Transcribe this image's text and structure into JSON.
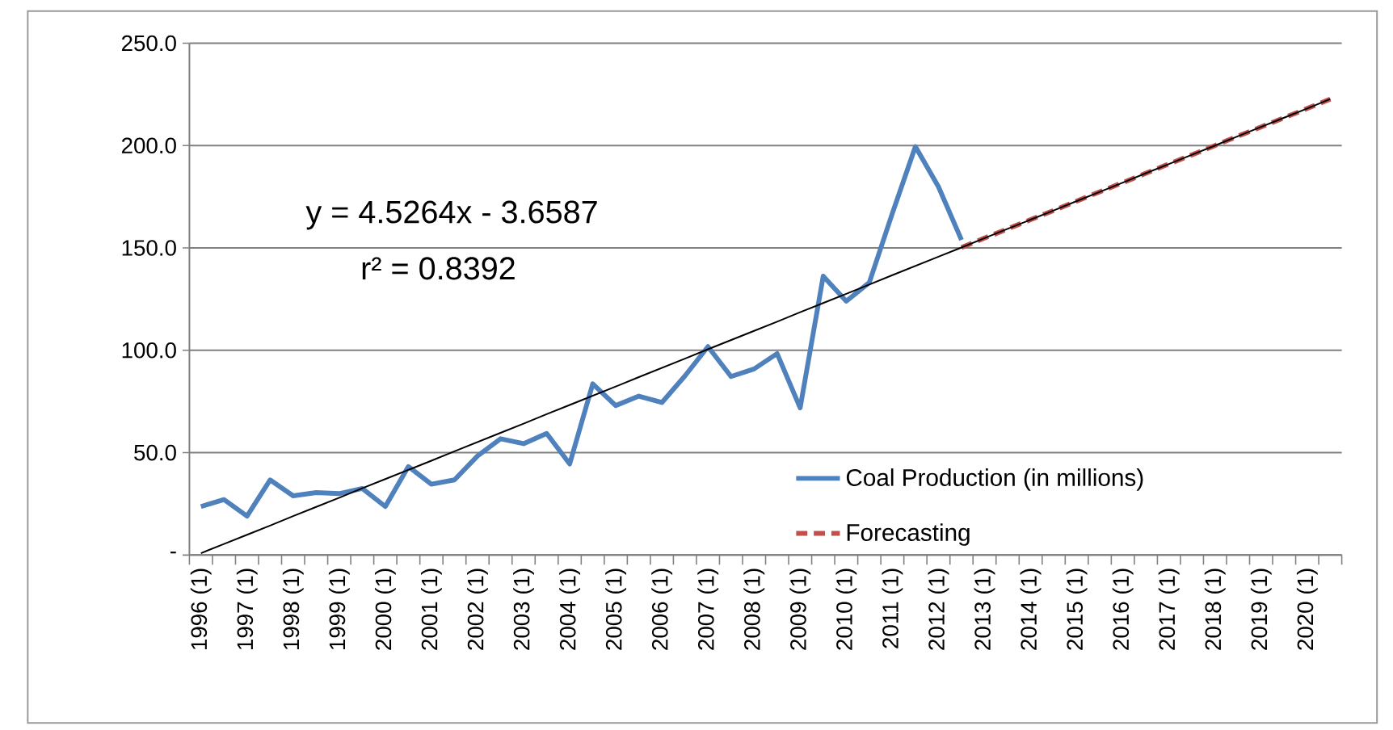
{
  "chart_data": {
    "type": "line",
    "categories": [
      "1996 (1)",
      null,
      "1997 (1)",
      null,
      "1998 (1)",
      null,
      "1999 (1)",
      null,
      "2000 (1)",
      null,
      "2001 (1)",
      null,
      "2002 (1)",
      null,
      "2003 (1)",
      null,
      "2004 (1)",
      null,
      "2005 (1)",
      null,
      "2006 (1)",
      null,
      "2007 (1)",
      null,
      "2008 (1)",
      null,
      "2009 (1)",
      null,
      "2010 (1)",
      null,
      "2011 (1)",
      null,
      "2012 (1)",
      null,
      "2013 (1)",
      null,
      "2014 (1)",
      null,
      "2015 (1)",
      null,
      "2016 (1)",
      null,
      "2017 (1)",
      null,
      "2018 (1)",
      null,
      "2019 (1)",
      null,
      "2020 (1)",
      null
    ],
    "series": [
      {
        "name": "Coal Production (in millions)",
        "color": "#4f81bd",
        "line_style": "solid",
        "values": [
          23.7,
          27.1,
          19.0,
          36.7,
          28.9,
          30.5,
          30.0,
          32.5,
          23.7,
          43.2,
          34.6,
          36.7,
          48.4,
          56.8,
          54.4,
          59.4,
          44.5,
          83.6,
          73.0,
          77.6,
          74.5,
          87.5,
          101.8,
          87.2,
          90.9,
          98.4,
          71.9,
          136.2,
          124.0,
          133.1,
          166.9,
          199.5,
          179.9,
          153.9,
          null,
          null,
          null,
          null,
          null,
          null,
          null,
          null,
          null,
          null,
          null,
          null,
          null,
          null,
          null,
          null
        ]
      },
      {
        "name": "Forecasting",
        "color": "#c0504d",
        "line_style": "dashed",
        "values": [
          null,
          null,
          null,
          null,
          null,
          null,
          null,
          null,
          null,
          null,
          null,
          null,
          null,
          null,
          null,
          null,
          null,
          null,
          null,
          null,
          null,
          null,
          null,
          null,
          null,
          null,
          null,
          null,
          null,
          null,
          null,
          null,
          null,
          150.2,
          154.8,
          159.3,
          163.8,
          168.3,
          172.9,
          177.4,
          181.9,
          186.5,
          191.0,
          195.5,
          200.0,
          204.6,
          209.1,
          213.6,
          218.1,
          222.7
        ]
      },
      {
        "color": "#000000",
        "line_style": "solid",
        "values": [
          0.9,
          5.4,
          9.9,
          14.4,
          19.0,
          23.5,
          28.0,
          32.6,
          37.1,
          41.6,
          46.1,
          50.7,
          55.2,
          59.7,
          64.2,
          68.8,
          73.3,
          77.8,
          82.3,
          86.9,
          91.4,
          95.9,
          100.5,
          105.0,
          109.5,
          114.0,
          118.6,
          123.1,
          127.6,
          132.1,
          136.7,
          141.2,
          145.7,
          150.2,
          154.8,
          159.3,
          163.8,
          168.3,
          172.9,
          177.4,
          181.9,
          186.5,
          191.0,
          195.5,
          200.0,
          204.6,
          209.1,
          213.6,
          218.1,
          222.7
        ]
      }
    ],
    "ylim": [
      0,
      250
    ],
    "yticks": [
      {
        "value": 0,
        "label": "-"
      },
      {
        "value": 50,
        "label": "50.0"
      },
      {
        "value": 100,
        "label": "100.0"
      },
      {
        "value": 150,
        "label": "150.0"
      },
      {
        "value": 200,
        "label": "200.0"
      },
      {
        "value": 250,
        "label": "250.0"
      }
    ],
    "grid": "y",
    "legend": "bottom right",
    "marker": "none",
    "annotations": [
      "y = 4.5264x - 3.6587",
      "r² = 0.8392"
    ]
  }
}
